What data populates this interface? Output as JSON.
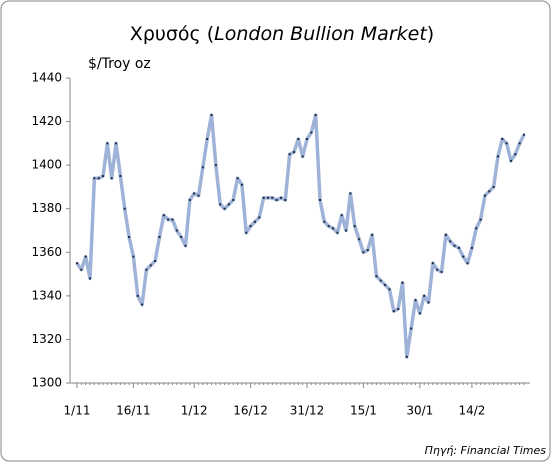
{
  "chart_data": {
    "type": "line",
    "title": [
      "Χρυσός (",
      "London Bullion Market",
      ")"
    ],
    "y_label": "$/Troy oz",
    "source": "Πηγή: Financial Times",
    "categories": [
      "1/11",
      null,
      null,
      null,
      null,
      null,
      null,
      null,
      null,
      null,
      null,
      null,
      null,
      "16/11",
      null,
      null,
      null,
      null,
      null,
      null,
      null,
      null,
      null,
      null,
      null,
      null,
      null,
      "1/12",
      null,
      null,
      null,
      null,
      null,
      null,
      null,
      null,
      null,
      null,
      null,
      null,
      "16/12",
      null,
      null,
      null,
      null,
      null,
      null,
      null,
      null,
      null,
      null,
      null,
      null,
      "31/12",
      null,
      null,
      null,
      null,
      null,
      null,
      null,
      null,
      null,
      null,
      null,
      null,
      "15/1",
      null,
      null,
      null,
      null,
      null,
      null,
      null,
      null,
      null,
      null,
      null,
      null,
      "30/1",
      null,
      null,
      null,
      null,
      null,
      null,
      null,
      null,
      null,
      null,
      null,
      "14/2",
      null,
      null,
      null,
      null,
      null,
      null,
      null,
      null,
      null,
      null,
      null,
      null
    ],
    "series": [
      {
        "name": "Χρυσός",
        "color": "#9fb3d8",
        "marker_color": "#1f2a44",
        "values": [
          1355,
          1352,
          1358,
          1348,
          1394,
          1394,
          1395,
          1410,
          1394,
          1410,
          1395,
          1380,
          1367,
          1358,
          1340,
          1336,
          1352,
          1354,
          1356,
          1367,
          1377,
          1375,
          1375,
          1370,
          1367,
          1363,
          1384,
          1387,
          1386,
          1399,
          1412,
          1423,
          1400,
          1382,
          1380,
          1382,
          1384,
          1394,
          1391,
          1369,
          1372,
          1374,
          1376,
          1385,
          1385,
          1385,
          1384,
          1385,
          1384,
          1405,
          1406,
          1412,
          1404,
          1412,
          1415,
          1423,
          1384,
          1374,
          1372,
          1371,
          1369,
          1377,
          1370,
          1387,
          1372,
          1366,
          1360,
          1361,
          1368,
          1349,
          1347,
          1345,
          1343,
          1333,
          1334,
          1346,
          1312,
          1325,
          1338,
          1332,
          1340,
          1337,
          1355,
          1352,
          1351,
          1368,
          1365,
          1363,
          1362,
          1358,
          1355,
          1362,
          1371,
          1375,
          1386,
          1388,
          1390,
          1404,
          1412,
          1410,
          1402,
          1405,
          1410,
          1414
        ]
      }
    ],
    "ylim": [
      1300,
      1440
    ],
    "yticks": [
      1300,
      1320,
      1340,
      1360,
      1380,
      1400,
      1420,
      1440
    ],
    "grid": false
  }
}
